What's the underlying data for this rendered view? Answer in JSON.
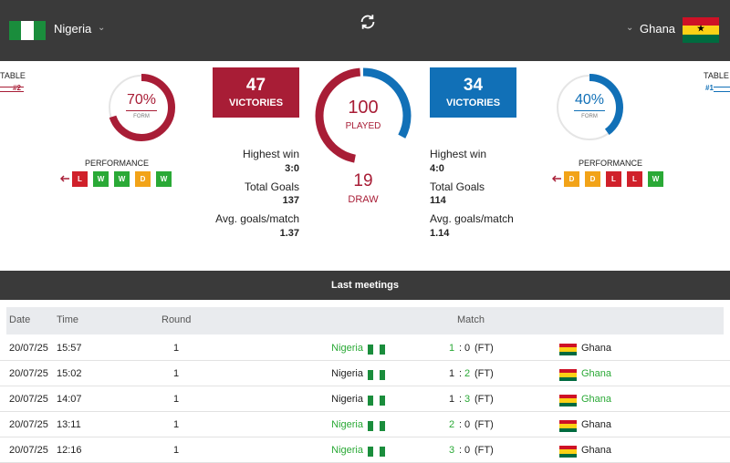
{
  "header": {
    "home_team": "Nigeria",
    "away_team": "Ghana"
  },
  "home": {
    "table_label": "TABLE",
    "table_rank": "#2",
    "form_value": "70%",
    "form_fraction": 0.7,
    "form_label": "FORM",
    "performance_label": "PERFORMANCE",
    "performance": [
      "L",
      "W",
      "W",
      "D",
      "W"
    ],
    "victories": "47",
    "victories_label": "VICTORIES",
    "highest_win_label": "Highest win",
    "highest_win": "3:0",
    "total_goals_label": "Total Goals",
    "total_goals": "137",
    "avg_goals_label": "Avg. goals/match",
    "avg_goals": "1.37"
  },
  "away": {
    "table_label": "TABLE",
    "table_rank": "#1",
    "form_value": "40%",
    "form_fraction": 0.4,
    "form_label": "FORM",
    "performance_label": "PERFORMANCE",
    "performance": [
      "D",
      "D",
      "L",
      "L",
      "W"
    ],
    "victories": "34",
    "victories_label": "VICTORIES",
    "highest_win_label": "Highest win",
    "highest_win": "4:0",
    "total_goals_label": "Total Goals",
    "total_goals": "114",
    "avg_goals_label": "Avg. goals/match",
    "avg_goals": "1.14"
  },
  "summary": {
    "played": "100",
    "played_label": "PLAYED",
    "draw": "19",
    "draw_label": "DRAW"
  },
  "last_meetings": {
    "title": "Last meetings",
    "columns": {
      "date": "Date",
      "time": "Time",
      "round": "Round",
      "match": "Match"
    },
    "rows": [
      {
        "date": "20/07/25",
        "time": "15:57",
        "round": "1",
        "home": "Nigeria",
        "home_goals": "1",
        "away_goals": "0",
        "status": "(FT)",
        "away": "Ghana",
        "winner": "home"
      },
      {
        "date": "20/07/25",
        "time": "15:02",
        "round": "1",
        "home": "Nigeria",
        "home_goals": "1",
        "away_goals": "2",
        "status": "(FT)",
        "away": "Ghana",
        "winner": "away"
      },
      {
        "date": "20/07/25",
        "time": "14:07",
        "round": "1",
        "home": "Nigeria",
        "home_goals": "1",
        "away_goals": "3",
        "status": "(FT)",
        "away": "Ghana",
        "winner": "away"
      },
      {
        "date": "20/07/25",
        "time": "13:11",
        "round": "1",
        "home": "Nigeria",
        "home_goals": "2",
        "away_goals": "0",
        "status": "(FT)",
        "away": "Ghana",
        "winner": "home"
      },
      {
        "date": "20/07/25",
        "time": "12:16",
        "round": "1",
        "home": "Nigeria",
        "home_goals": "3",
        "away_goals": "0",
        "status": "(FT)",
        "away": "Ghana",
        "winner": "home"
      }
    ]
  },
  "colors": {
    "home": "#a81d36",
    "away": "#1170b7",
    "win": "#2aa936",
    "loss": "#d0202a",
    "draw": "#f2a318",
    "header_bg": "#3a3a3a"
  },
  "icons": {
    "refresh": "refresh-icon",
    "home_flag": "nigeria-flag-icon",
    "away_flag": "ghana-flag-icon"
  }
}
